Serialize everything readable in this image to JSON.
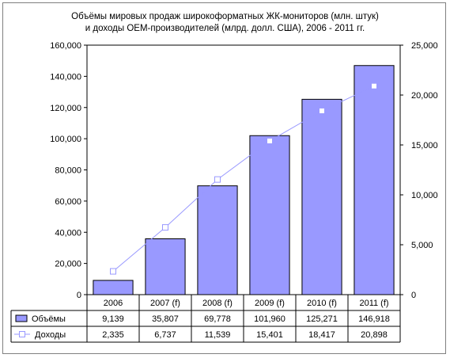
{
  "chart_data": {
    "type": "bar",
    "title_lines": [
      "Объёмы мировых продаж широкоформатных ЖК-мониторов (млн. штук)",
      "и доходы OEM-производителей (млрд. долл. США), 2006 - 2011 гг."
    ],
    "categories": [
      "2006",
      "2007 (f)",
      "2008 (f)",
      "2009 (f)",
      "2010 (f)",
      "2011 (f)"
    ],
    "series": [
      {
        "name": "Объёмы",
        "kind": "bar",
        "axis": "left",
        "color": "#9999ff",
        "values": [
          9139,
          35807,
          69778,
          101960,
          125271,
          146918
        ],
        "labels": [
          "9,139",
          "35,807",
          "69,778",
          "101,960",
          "125,271",
          "146,918"
        ]
      },
      {
        "name": "Доходы",
        "kind": "line",
        "axis": "right",
        "color": "#9999ff",
        "marker": "square",
        "values": [
          2335,
          6737,
          11539,
          15401,
          18417,
          20898
        ],
        "labels": [
          "2,335",
          "6,737",
          "11,539",
          "15,401",
          "18,417",
          "20,898"
        ]
      }
    ],
    "y_left": {
      "range": [
        0,
        160000
      ],
      "ticks": [
        0,
        20000,
        40000,
        60000,
        80000,
        100000,
        120000,
        140000,
        160000
      ],
      "tick_labels": [
        "0",
        "20,000",
        "40,000",
        "60,000",
        "80,000",
        "100,000",
        "120,000",
        "140,000",
        "160,000"
      ]
    },
    "y_right": {
      "range": [
        0,
        25000
      ],
      "ticks": [
        0,
        5000,
        10000,
        15000,
        20000,
        25000
      ],
      "tick_labels": [
        "0",
        "5,000",
        "10,000",
        "15,000",
        "20,000",
        "25,000"
      ]
    },
    "grid": false,
    "legend": "data-table"
  }
}
